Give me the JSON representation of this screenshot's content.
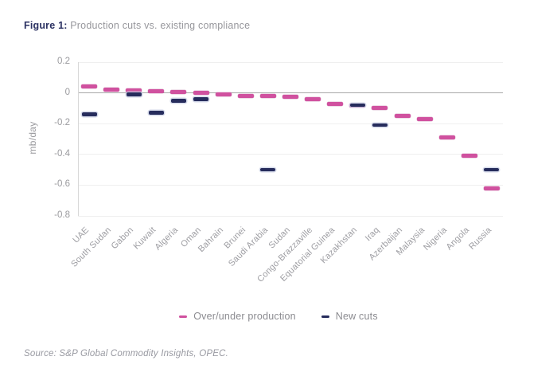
{
  "figure": {
    "label": "Figure 1:",
    "title": " Production cuts vs. existing compliance"
  },
  "source": "Source: S&P Global Commodity Insights, OPEC.",
  "colors": {
    "pink": "#d0519f",
    "navy": "#262c5c",
    "title_navy": "#2b3162",
    "text_gray": "#97979c",
    "gridline": "#efefef",
    "zero_line": "#a8a8a8"
  },
  "chart_data": {
    "type": "scatter",
    "marker_style": "dash",
    "title": "Production cuts vs. existing compliance",
    "ylabel": "mb/day",
    "xlabel": "",
    "ylim": [
      -0.8,
      0.2
    ],
    "ytick_labels": [
      "0.2",
      "0",
      "-0.2",
      "-0.4",
      "-0.6",
      "-0.8"
    ],
    "grid": true,
    "legend_position": "bottom",
    "categories": [
      "UAE",
      "South Sudan",
      "Gabon",
      "Kuwait",
      "Algeria",
      "Oman",
      "Bahrain",
      "Brunei",
      "Saudi Arabia",
      "Sudan",
      "Congo-Brazzaville",
      "Equatorial Guinea",
      "Kazakhstan",
      "Iraq",
      "Azerbaijan",
      "Malaysia",
      "Nigeria",
      "Angola",
      "Russia"
    ],
    "series": [
      {
        "name": "Over/under production",
        "color_key": "pink",
        "values": [
          0.04,
          0.02,
          0.015,
          0.01,
          0.005,
          0.0,
          -0.01,
          -0.02,
          -0.02,
          -0.025,
          -0.04,
          -0.07,
          -0.08,
          -0.1,
          -0.15,
          -0.17,
          -0.29,
          -0.41,
          -0.62
        ]
      },
      {
        "name": "New cuts",
        "color_key": "navy",
        "values": [
          -0.14,
          null,
          -0.01,
          -0.13,
          -0.05,
          -0.04,
          null,
          null,
          -0.5,
          null,
          null,
          null,
          -0.08,
          -0.21,
          null,
          null,
          null,
          null,
          -0.5
        ]
      }
    ]
  }
}
